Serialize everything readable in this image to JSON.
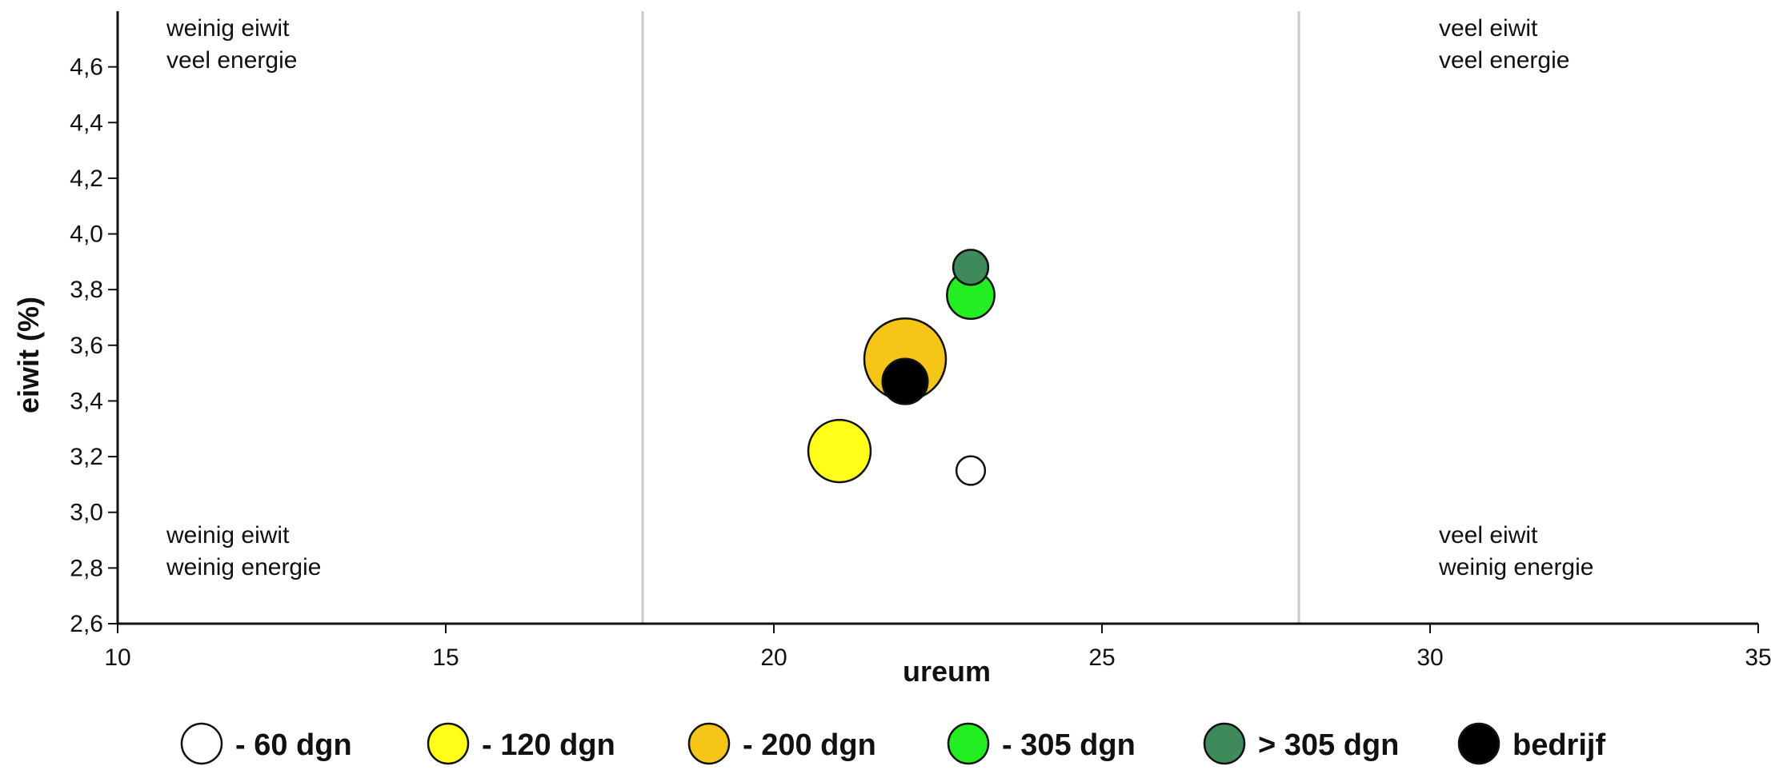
{
  "chart_data": {
    "type": "bubble",
    "xlabel": "ureum",
    "ylabel": "eiwit (%)",
    "xlim": [
      10,
      35
    ],
    "ylim": [
      2.6,
      4.8
    ],
    "x_ticks": [
      10,
      15,
      20,
      25,
      30,
      35
    ],
    "y_ticks": [
      2.6,
      2.8,
      3.0,
      3.2,
      3.4,
      3.6,
      3.8,
      4.0,
      4.2,
      4.4,
      4.6
    ],
    "y_tick_labels": [
      "2,6",
      "2,8",
      "3,0",
      "3,2",
      "3,4",
      "3,6",
      "3,8",
      "4,0",
      "4,2",
      "4,4",
      "4,6"
    ],
    "reference_lines_x": [
      18,
      28
    ],
    "quadrants": [
      {
        "lines": [
          "weinig eiwit",
          "veel energie"
        ],
        "position": "top-left"
      },
      {
        "lines": [
          "veel eiwit",
          "veel energie"
        ],
        "position": "top-right"
      },
      {
        "lines": [
          "weinig eiwit",
          "weinig energie"
        ],
        "position": "bottom-left"
      },
      {
        "lines": [
          "veel eiwit",
          "weinig energie"
        ],
        "position": "bottom-right"
      }
    ],
    "series": [
      {
        "name": "- 60 dgn",
        "color": "#ffffff",
        "x": 23.0,
        "y": 3.15,
        "size": 0.8
      },
      {
        "name": "- 120 dgn",
        "color": "#ffff1a",
        "x": 21.0,
        "y": 3.22,
        "size": 3.8
      },
      {
        "name": "- 200 dgn",
        "color": "#f5c518",
        "x": 22.0,
        "y": 3.55,
        "size": 6.5
      },
      {
        "name": "- 305 dgn",
        "color": "#22ee22",
        "x": 23.0,
        "y": 3.78,
        "size": 2.2
      },
      {
        "name": "> 305 dgn",
        "color": "#3f8a5a",
        "x": 23.0,
        "y": 3.88,
        "size": 1.2
      },
      {
        "name": "bedrijf",
        "color": "#000000",
        "x": 22.0,
        "y": 3.47,
        "size": 2.0
      }
    ],
    "legend_position": "bottom",
    "grid": false
  }
}
